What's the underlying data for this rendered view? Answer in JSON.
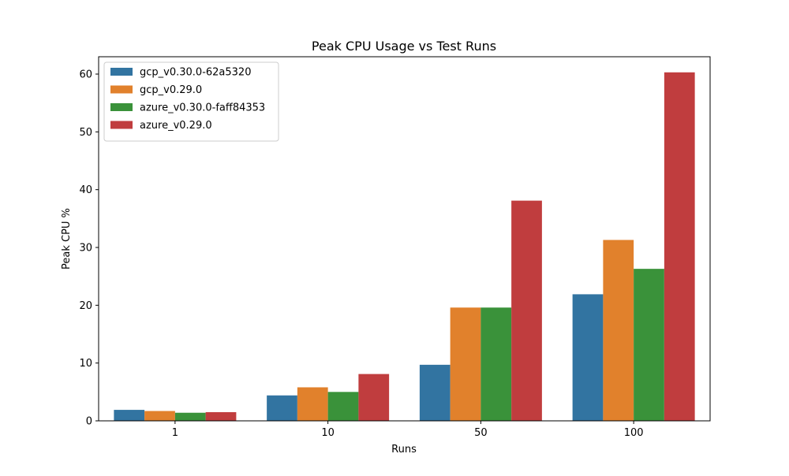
{
  "chart_data": {
    "type": "bar",
    "title": "Peak CPU Usage vs Test Runs",
    "xlabel": "Runs",
    "ylabel": "Peak CPU %",
    "categories": [
      "1",
      "10",
      "50",
      "100"
    ],
    "ylim": [
      0,
      63
    ],
    "yticks": [
      0,
      10,
      20,
      30,
      40,
      50,
      60
    ],
    "grid": false,
    "legend_position": "top-left",
    "series": [
      {
        "name": "gcp_v0.30.0-62a5320",
        "color": "#3274a1",
        "values": [
          1.9,
          4.4,
          9.7,
          21.9
        ]
      },
      {
        "name": "gcp_v0.29.0",
        "color": "#e1812c",
        "values": [
          1.7,
          5.8,
          19.6,
          31.3
        ]
      },
      {
        "name": "azure_v0.30.0-faff84353",
        "color": "#3a923a",
        "values": [
          1.4,
          5.0,
          19.6,
          26.3
        ]
      },
      {
        "name": "azure_v0.29.0",
        "color": "#c03d3e",
        "values": [
          1.5,
          8.1,
          38.1,
          60.3
        ]
      }
    ]
  }
}
